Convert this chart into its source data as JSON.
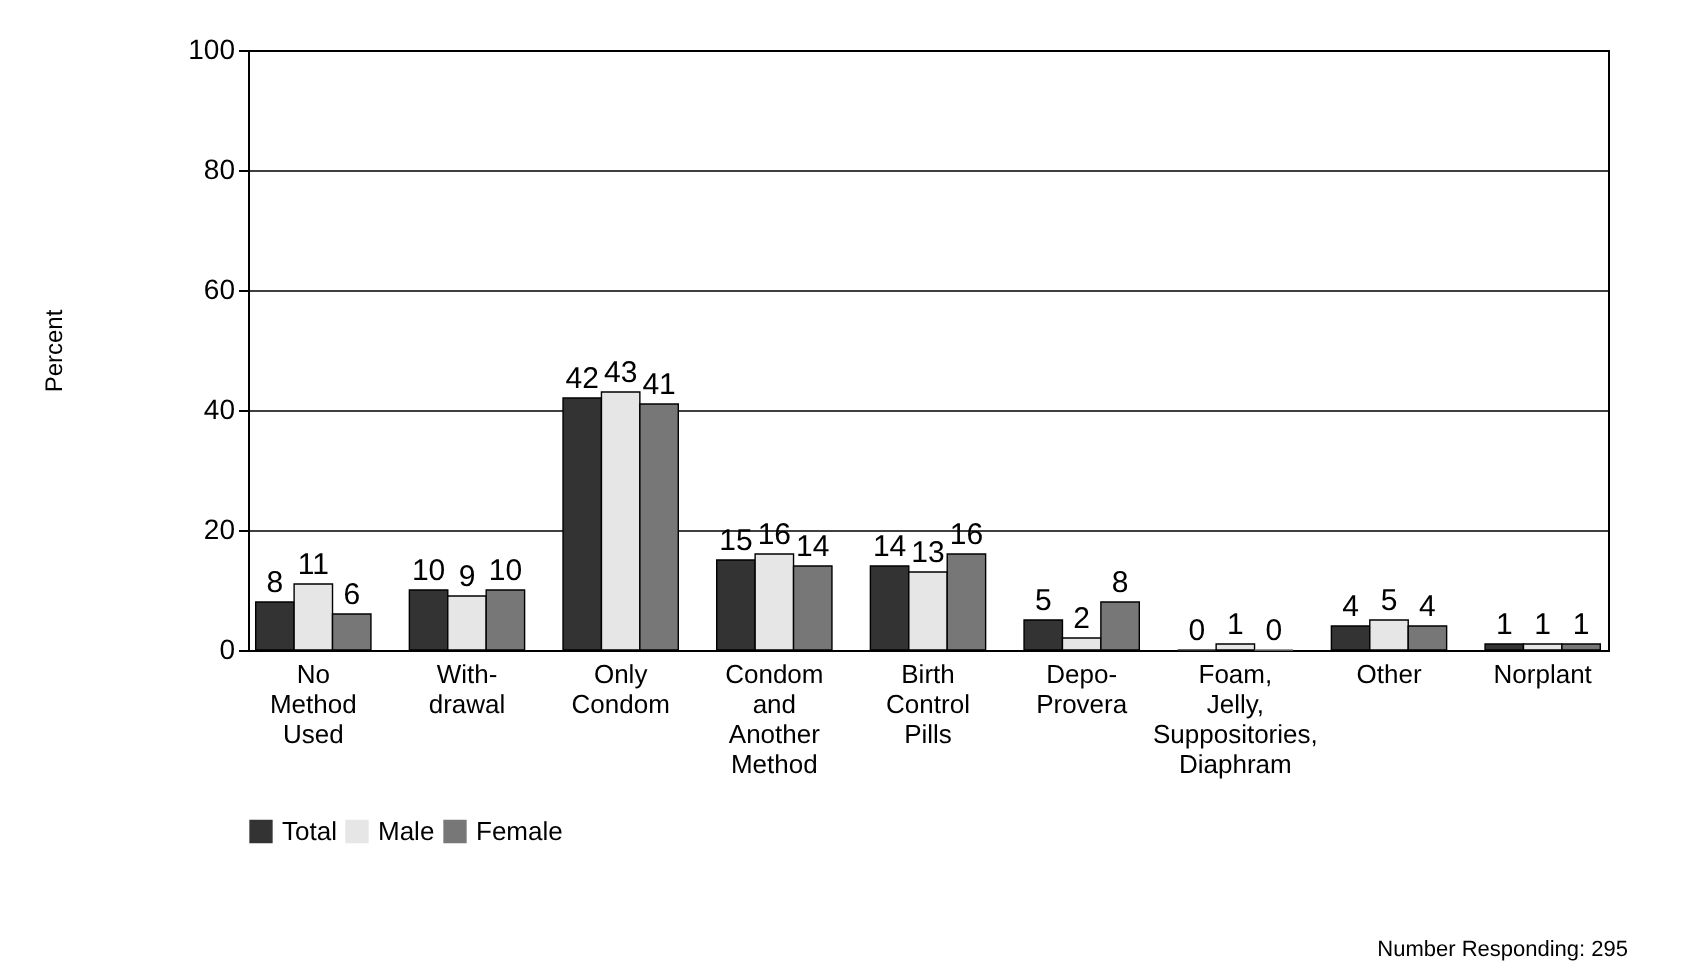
{
  "chart_data": {
    "type": "bar",
    "ylabel": "Percent",
    "categories": [
      "No\nMethod\nUsed",
      "With-\ndrawal",
      "Only\nCondom",
      "Condom\nand\nAnother\nMethod",
      "Birth\nControl\nPills",
      "Depo-\nProvera",
      "Foam,\nJelly,\nSuppositories,\nDiaphram",
      "Other",
      "Norplant"
    ],
    "series": [
      {
        "name": "Total",
        "color": "#333333",
        "values": [
          8,
          10,
          42,
          15,
          14,
          5,
          0,
          4,
          1
        ]
      },
      {
        "name": "Male",
        "color": "#e6e6e6",
        "values": [
          11,
          9,
          43,
          16,
          13,
          2,
          1,
          5,
          1
        ]
      },
      {
        "name": "Female",
        "color": "#777777",
        "values": [
          6,
          10,
          41,
          14,
          16,
          8,
          0,
          4,
          1
        ]
      }
    ],
    "ylim": [
      0,
      100
    ],
    "yticks": [
      0,
      20,
      40,
      60,
      80,
      100
    ],
    "grid": "y",
    "legend": "bottom left",
    "data_labels": true,
    "annotations": [
      "Number Responding:  295"
    ]
  }
}
